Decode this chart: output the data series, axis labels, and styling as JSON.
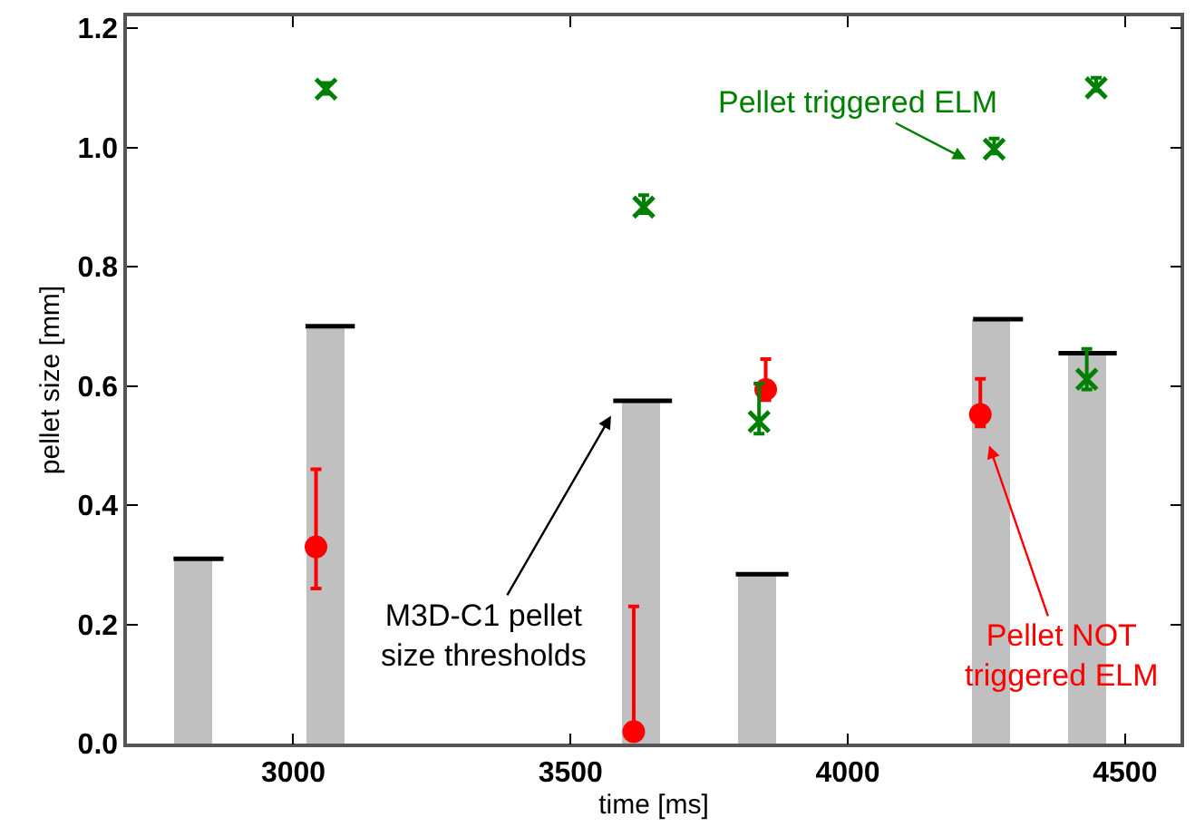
{
  "chart_data": {
    "type": "scatter",
    "xlabel": "time [ms]",
    "ylabel": "pellet size [mm]",
    "xlim": [
      2700,
      4600
    ],
    "xticks": [
      3000,
      3500,
      4000,
      4500
    ],
    "ylim": [
      0,
      1.22
    ],
    "yticks": [
      {
        "value": 0,
        "label": "0.0"
      },
      {
        "value": 0.2,
        "label": "0.2"
      },
      {
        "value": 0.4,
        "label": "0.4"
      },
      {
        "value": 0.6,
        "label": "0.6"
      },
      {
        "value": 0.8,
        "label": "0.8"
      },
      {
        "value": 1.0,
        "label": "1.0"
      },
      {
        "value": 1.2,
        "label": "1.2"
      }
    ],
    "series": [
      {
        "type": "bar",
        "color": "#c0c0c0",
        "x": [
          2820,
          3058,
          3628,
          3836,
          4258,
          4432
        ],
        "values": [
          0.31,
          0.7,
          0.575,
          0.284,
          0.712,
          0.655
        ]
      },
      {
        "type": "line",
        "marker": "none",
        "color": "#000000",
        "x": [
          2784,
          2874,
          2950,
          3022,
          3111,
          3300,
          3577,
          3683,
          3740,
          3798,
          3893,
          4000,
          4226,
          4316,
          4350,
          4380,
          4485
        ],
        "values": [
          0.31,
          0.31,
          null,
          0.7,
          0.7,
          null,
          0.575,
          0.575,
          null,
          0.284,
          0.284,
          null,
          0.712,
          0.712,
          null,
          0.655,
          0.655
        ]
      },
      {
        "marker": "circle",
        "color": "#ff0000",
        "x": [
          3041,
          3614,
          3852,
          4239
        ],
        "values": [
          0.33,
          0.02,
          0.594,
          0.552
        ],
        "errors": [
          [
            0.26,
            0.46
          ],
          [
            0.02,
            0.23
          ],
          [
            0.576,
            0.645
          ],
          [
            0.532,
            0.612
          ]
        ]
      },
      {
        "marker": "cross",
        "color": "#008000",
        "x": [
          3059,
          3632,
          3840,
          4264,
          4448,
          4431
        ],
        "values": [
          1.098,
          0.9,
          0.54,
          0.997,
          1.1,
          0.611
        ],
        "errors": [
          [
            1.09,
            1.108
          ],
          [
            0.89,
            0.92
          ],
          [
            0.52,
            0.604
          ],
          [
            0.99,
            1.015
          ],
          [
            1.095,
            1.117
          ],
          [
            0.594,
            0.662
          ]
        ]
      }
    ],
    "annotations": [
      "Pellet triggered ELM",
      "M3D-C1 pellet\nsize thresholds",
      "Pellet NOT\ntriggered ELM"
    ]
  }
}
